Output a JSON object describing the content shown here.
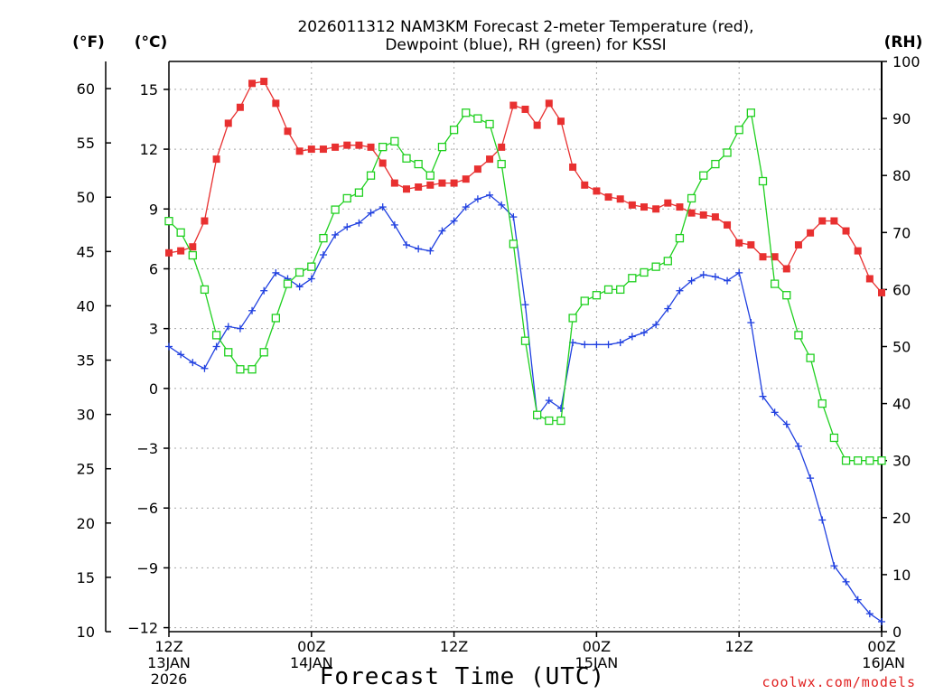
{
  "chart_data": {
    "type": "line",
    "title_lines": [
      "2026011312 NAM3KM Forecast 2-meter Temperature (red),",
      "Dewpoint (blue), RH (green) for KSSI"
    ],
    "xlabel": "Forecast Time (UTC)",
    "credit": "coolwx.com/models",
    "unit_labels": {
      "fahrenheit": "(°F)",
      "celsius": "(°C)",
      "rh": "(RH)"
    },
    "x_range_hours": [
      0,
      60
    ],
    "x_ticks": [
      {
        "hour": 0,
        "lines": [
          "12Z",
          "13JAN",
          "2026"
        ]
      },
      {
        "hour": 12,
        "lines": [
          "00Z",
          "14JAN"
        ]
      },
      {
        "hour": 24,
        "lines": [
          "12Z"
        ]
      },
      {
        "hour": 36,
        "lines": [
          "00Z",
          "15JAN"
        ]
      },
      {
        "hour": 48,
        "lines": [
          "12Z"
        ]
      },
      {
        "hour": 60,
        "lines": [
          "00Z",
          "16JAN"
        ]
      }
    ],
    "y_celsius": {
      "range": [
        -12.2,
        16.4
      ],
      "ticks": [
        15,
        12,
        9,
        6,
        3,
        0,
        -3,
        -6,
        -9,
        -12
      ],
      "tick_labels": [
        "15",
        "12",
        "9",
        "6",
        "3",
        "0",
        "−3",
        "−6",
        "−9",
        "−12"
      ]
    },
    "y_fahrenheit": {
      "range": [
        10,
        62.5
      ],
      "ticks": [
        60,
        55,
        50,
        45,
        40,
        35,
        30,
        25,
        20,
        15,
        10
      ],
      "tick_labels": [
        "60",
        "55",
        "50",
        "45",
        "40",
        "35",
        "30",
        "25",
        "20",
        "15",
        "10"
      ]
    },
    "y_rh": {
      "range": [
        0,
        100
      ],
      "ticks": [
        100,
        90,
        80,
        70,
        60,
        50,
        40,
        30,
        20,
        10,
        0
      ],
      "tick_labels": [
        "100",
        "90",
        "80",
        "70",
        "60",
        "50",
        "40",
        "30",
        "20",
        "10",
        "0"
      ]
    },
    "series": [
      {
        "name": "2-meter Temperature",
        "units": "C",
        "color": "#e83030",
        "marker": "filled-square",
        "x": [
          0,
          1,
          2,
          3,
          4,
          5,
          6,
          7,
          8,
          9,
          10,
          11,
          12,
          13,
          14,
          15,
          16,
          17,
          18,
          19,
          20,
          21,
          22,
          23,
          24,
          25,
          26,
          27,
          28,
          29,
          30,
          31,
          32,
          33,
          34,
          35,
          36,
          37,
          38,
          39,
          40,
          41,
          42,
          43,
          44,
          45,
          46,
          47,
          48,
          49,
          50,
          51,
          52,
          53,
          54,
          55,
          56,
          57,
          58,
          59,
          60
        ],
        "values": [
          6.8,
          6.9,
          7.1,
          8.4,
          11.5,
          13.3,
          14.1,
          15.3,
          15.4,
          14.3,
          12.9,
          11.9,
          12.0,
          12.0,
          12.1,
          12.2,
          12.2,
          12.1,
          11.3,
          10.3,
          10.0,
          10.1,
          10.2,
          10.3,
          10.3,
          10.5,
          11.0,
          11.5,
          12.1,
          14.2,
          14.0,
          13.2,
          14.3,
          13.4,
          11.1,
          10.2,
          9.9,
          9.6,
          9.5,
          9.2,
          9.1,
          9.0,
          9.3,
          9.1,
          8.8,
          8.7,
          8.6,
          8.2,
          7.3,
          7.2,
          6.6,
          6.6,
          6.0,
          7.2,
          7.8,
          8.4,
          8.4,
          7.9,
          6.9,
          5.5,
          4.8
        ]
      },
      {
        "name": "Dewpoint",
        "units": "C",
        "color": "#2040e0",
        "marker": "plus",
        "x": [
          0,
          1,
          2,
          3,
          4,
          5,
          6,
          7,
          8,
          9,
          10,
          11,
          12,
          13,
          14,
          15,
          16,
          17,
          18,
          19,
          20,
          21,
          22,
          23,
          24,
          25,
          26,
          27,
          28,
          29,
          30,
          31,
          32,
          33,
          34,
          35,
          36,
          37,
          38,
          39,
          40,
          41,
          42,
          43,
          44,
          45,
          46,
          47,
          48,
          49,
          50,
          51,
          52,
          53,
          54,
          55,
          56,
          57,
          58,
          59,
          60
        ],
        "values": [
          2.1,
          1.7,
          1.3,
          1.0,
          2.1,
          3.1,
          3.0,
          3.9,
          4.9,
          5.8,
          5.5,
          5.1,
          5.5,
          6.7,
          7.7,
          8.1,
          8.3,
          8.8,
          9.1,
          8.2,
          7.2,
          7.0,
          6.9,
          7.9,
          8.4,
          9.1,
          9.5,
          9.7,
          9.2,
          8.6,
          4.2,
          -1.4,
          -0.6,
          -1.0,
          2.3,
          2.2,
          2.2,
          2.2,
          2.3,
          2.6,
          2.8,
          3.2,
          4.0,
          4.9,
          5.4,
          5.7,
          5.6,
          5.4,
          5.8,
          3.3,
          -0.4,
          -1.2,
          -1.8,
          -2.9,
          -4.5,
          -6.6,
          -8.9,
          -9.7,
          -10.6,
          -11.3,
          -11.7
        ]
      },
      {
        "name": "RH",
        "units": "%",
        "color": "#20d020",
        "marker": "open-square",
        "x": [
          0,
          1,
          2,
          3,
          4,
          5,
          6,
          7,
          8,
          9,
          10,
          11,
          12,
          13,
          14,
          15,
          16,
          17,
          18,
          19,
          20,
          21,
          22,
          23,
          24,
          25,
          26,
          27,
          28,
          29,
          30,
          31,
          32,
          33,
          34,
          35,
          36,
          37,
          38,
          39,
          40,
          41,
          42,
          43,
          44,
          45,
          46,
          47,
          48,
          49,
          50,
          51,
          52,
          53,
          54,
          55,
          56,
          57,
          58,
          59,
          60
        ],
        "values": [
          72,
          70,
          66,
          60,
          52,
          49,
          46,
          46,
          49,
          55,
          61,
          63,
          64,
          69,
          74,
          76,
          77,
          80,
          85,
          86,
          83,
          82,
          80,
          85,
          88,
          91,
          90,
          89,
          82,
          68,
          51,
          38,
          37,
          37,
          55,
          58,
          59,
          60,
          60,
          62,
          63,
          64,
          65,
          69,
          76,
          80,
          82,
          84,
          88,
          91,
          79,
          61,
          59,
          52,
          48,
          40,
          34,
          30,
          30,
          30,
          30
        ]
      }
    ]
  }
}
